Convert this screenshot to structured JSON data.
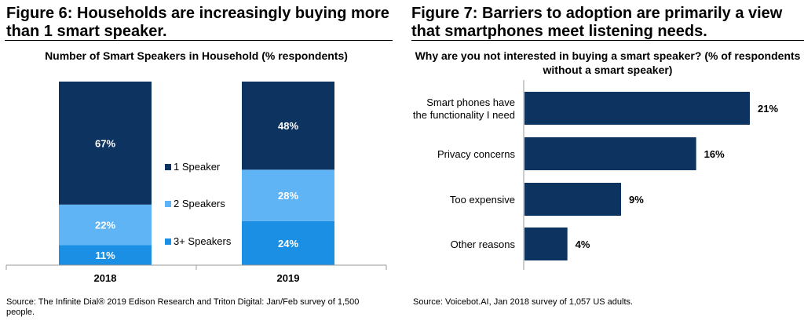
{
  "figure6": {
    "title": "Figure 6: Households are increasingly buying more than 1 smart speaker.",
    "source": "Source: The Infinite Dial® 2019 Edison Research and Triton Digital: Jan/Feb survey of 1,500 people."
  },
  "figure7": {
    "title": "Figure 7: Barriers to adoption are primarily a view that smartphones meet listening needs.",
    "source": "Source: Voicebot.AI, Jan 2018 survey of 1,057 US adults."
  },
  "chart_data": [
    {
      "type": "bar",
      "stacked": true,
      "orientation": "vertical",
      "title": "Number of Smart Speakers in Household (% respondents)",
      "categories": [
        "2018",
        "2019"
      ],
      "series": [
        {
          "name": "3+ Speakers",
          "values": [
            11,
            24
          ],
          "labels": [
            "11%",
            "24%"
          ],
          "color": "#1a8fe3"
        },
        {
          "name": "2 Speakers",
          "values": [
            22,
            28
          ],
          "labels": [
            "22%",
            "28%"
          ],
          "color": "#5fb4f5"
        },
        {
          "name": "1 Speaker",
          "values": [
            67,
            48
          ],
          "labels": [
            "67%",
            "48%"
          ],
          "color": "#0d3360"
        }
      ],
      "ylim": [
        0,
        100
      ],
      "legend_position": "center"
    },
    {
      "type": "bar",
      "orientation": "horizontal",
      "title": "Why are you not interested in buying a smart speaker? (% of respondents without a smart speaker)",
      "categories": [
        "Smart phones have the functionality I need",
        "Privacy concerns",
        "Too expensive",
        "Other reasons"
      ],
      "values": [
        21,
        16,
        9,
        4
      ],
      "labels": [
        "21%",
        "16%",
        "9%",
        "4%"
      ],
      "color": "#0d3360",
      "xlim": [
        0,
        21
      ]
    }
  ]
}
